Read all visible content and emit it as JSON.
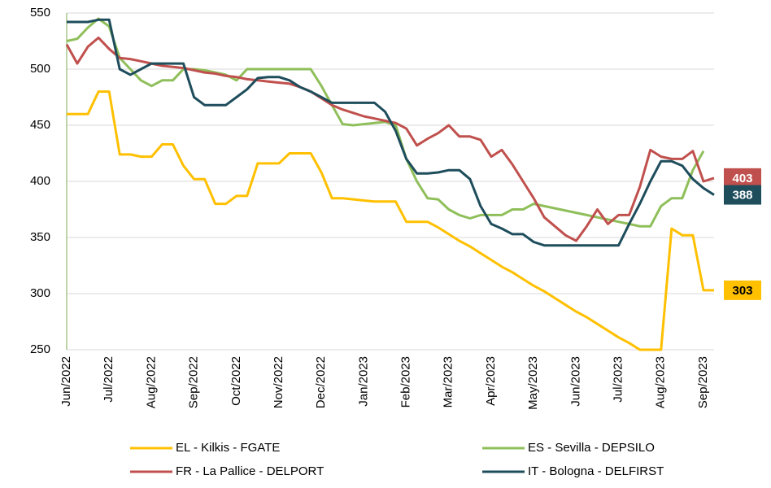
{
  "chart_data": {
    "type": "line",
    "categories": [
      "Jun/2022",
      null,
      null,
      null,
      "Jul/2022",
      null,
      null,
      null,
      "Aug/2022",
      null,
      null,
      null,
      "Sep/2022",
      null,
      null,
      null,
      "Oct/2022",
      null,
      null,
      null,
      "Nov/2022",
      null,
      null,
      null,
      "Dec/2022",
      null,
      null,
      null,
      "Jan/2023",
      null,
      null,
      null,
      "Feb/2023",
      null,
      null,
      null,
      "Mar/2023",
      null,
      null,
      null,
      "Apr/2023",
      null,
      null,
      null,
      "May/2023",
      null,
      null,
      null,
      "Jun/2023",
      null,
      null,
      null,
      "Jul/2023",
      null,
      null,
      null,
      "Aug/2023",
      null,
      null,
      null,
      "Sep/2023",
      null
    ],
    "series": [
      {
        "name": "EL - Kilkis - FGATE",
        "color": "#ffc000",
        "end_label": true,
        "label_text_color": "#000000",
        "values": [
          460,
          460,
          460,
          480,
          480,
          424,
          424,
          422,
          422,
          433,
          433,
          414,
          402,
          402,
          380,
          380,
          387,
          387,
          416,
          416,
          416,
          425,
          425,
          425,
          408,
          385,
          385,
          384,
          383,
          382,
          382,
          382,
          364,
          364,
          364,
          359,
          353,
          347,
          342,
          336,
          330,
          324,
          319,
          313,
          307,
          302,
          296,
          290,
          284,
          279,
          273,
          267,
          261,
          256,
          250,
          250,
          250,
          358,
          352,
          352,
          303,
          303
        ]
      },
      {
        "name": "ES - Sevilla - DEPSILO",
        "color": "#8fbf5a",
        "end_label": false,
        "values": [
          525,
          527,
          537,
          545,
          538,
          510,
          500,
          490,
          485,
          490,
          490,
          500,
          500,
          499,
          497,
          495,
          490,
          500,
          500,
          500,
          500,
          500,
          500,
          500,
          485,
          468,
          451,
          450,
          451,
          452,
          453,
          450,
          420,
          400,
          385,
          384,
          375,
          370,
          367,
          370,
          370,
          370,
          375,
          375,
          380,
          378,
          376,
          374,
          372,
          370,
          368,
          366,
          364,
          362,
          360,
          360,
          378,
          385,
          385,
          410,
          427,
          null
        ]
      },
      {
        "name": "FR - La Pallice - DELPORT",
        "color": "#c0504d",
        "end_label": true,
        "label_text_color": "#ffffff",
        "values": [
          522,
          505,
          520,
          528,
          518,
          510,
          509,
          507,
          505,
          503,
          502,
          501,
          499,
          497,
          496,
          494,
          493,
          491,
          490,
          489,
          488,
          487,
          484,
          480,
          474,
          468,
          464,
          461,
          458,
          456,
          454,
          452,
          447,
          432,
          438,
          443,
          450,
          440,
          440,
          437,
          422,
          428,
          415,
          400,
          385,
          368,
          360,
          352,
          347,
          360,
          375,
          362,
          370,
          370,
          395,
          428,
          422,
          420,
          420,
          427,
          400,
          403
        ]
      },
      {
        "name": "IT - Bologna - DELFIRST",
        "color": "#1e4d5c",
        "end_label": true,
        "label_text_color": "#ffffff",
        "values": [
          542,
          542,
          542,
          544,
          544,
          500,
          495,
          500,
          505,
          505,
          505,
          505,
          475,
          468,
          468,
          468,
          475,
          482,
          492,
          493,
          493,
          490,
          484,
          480,
          475,
          470,
          470,
          470,
          470,
          470,
          462,
          445,
          420,
          407,
          407,
          408,
          410,
          410,
          402,
          378,
          362,
          358,
          353,
          353,
          346,
          343,
          343,
          343,
          343,
          343,
          343,
          343,
          343,
          362,
          380,
          400,
          418,
          418,
          414,
          402,
          394,
          388
        ]
      }
    ],
    "ylim": [
      250,
      550
    ],
    "yticks": [
      250,
      300,
      350,
      400,
      450,
      500,
      550
    ],
    "grid": true,
    "legend": "bottom"
  }
}
